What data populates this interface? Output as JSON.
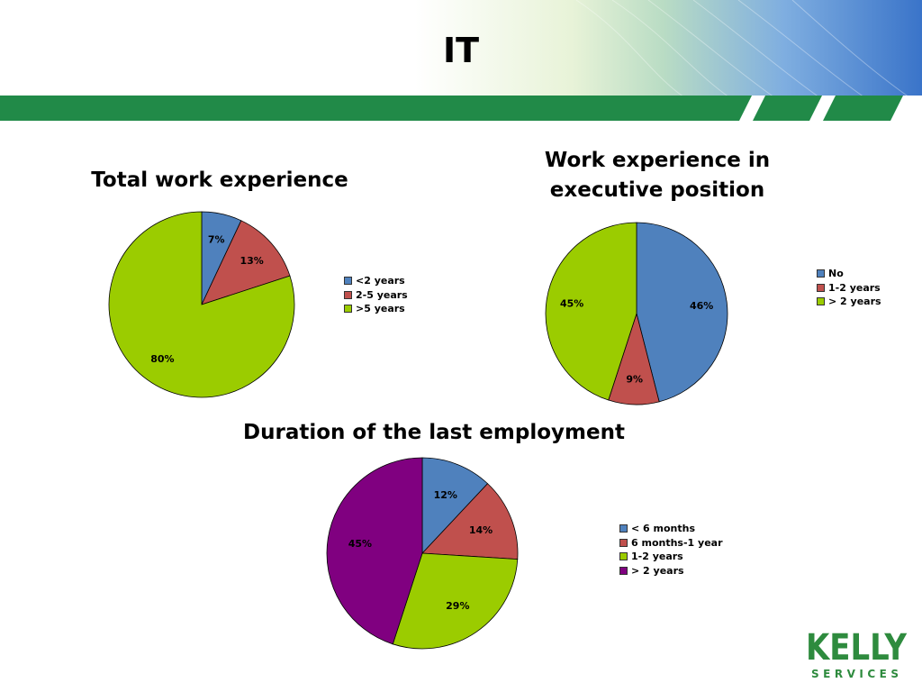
{
  "slide": {
    "title": "IT",
    "logo": {
      "name": "KELLY",
      "sub": "SERVICES",
      "color": "#2e8b3e"
    }
  },
  "theme": {
    "band_color": "#218a48",
    "band_accent": "#ffffff",
    "sky_color": "#3a74c9"
  },
  "chart_data": [
    {
      "type": "pie",
      "title": "Total work experience",
      "categories": [
        "<2 years",
        "2-5 years",
        ">5 years"
      ],
      "values": [
        7,
        13,
        80
      ],
      "labels": [
        "7%",
        "13%",
        "80%"
      ],
      "colors": [
        "#4f81bd",
        "#c0504d",
        "#9bcc00"
      ],
      "legend": "right"
    },
    {
      "type": "pie",
      "title": "Work experience in executive position",
      "categories": [
        "No",
        "1-2 years",
        "> 2 years"
      ],
      "values": [
        46,
        9,
        45
      ],
      "labels": [
        "46%",
        "9%",
        "45%"
      ],
      "colors": [
        "#4f81bd",
        "#c0504d",
        "#9bcc00"
      ],
      "legend": "right"
    },
    {
      "type": "pie",
      "title": "Duration of the last employment",
      "categories": [
        "< 6 months",
        "6 months-1 year",
        "1-2 years",
        "> 2 years"
      ],
      "values": [
        12,
        14,
        29,
        45
      ],
      "labels": [
        "12%",
        "14%",
        "29%",
        "45%"
      ],
      "colors": [
        "#4f81bd",
        "#c0504d",
        "#9bcc00",
        "#800080"
      ],
      "legend": "right"
    }
  ]
}
